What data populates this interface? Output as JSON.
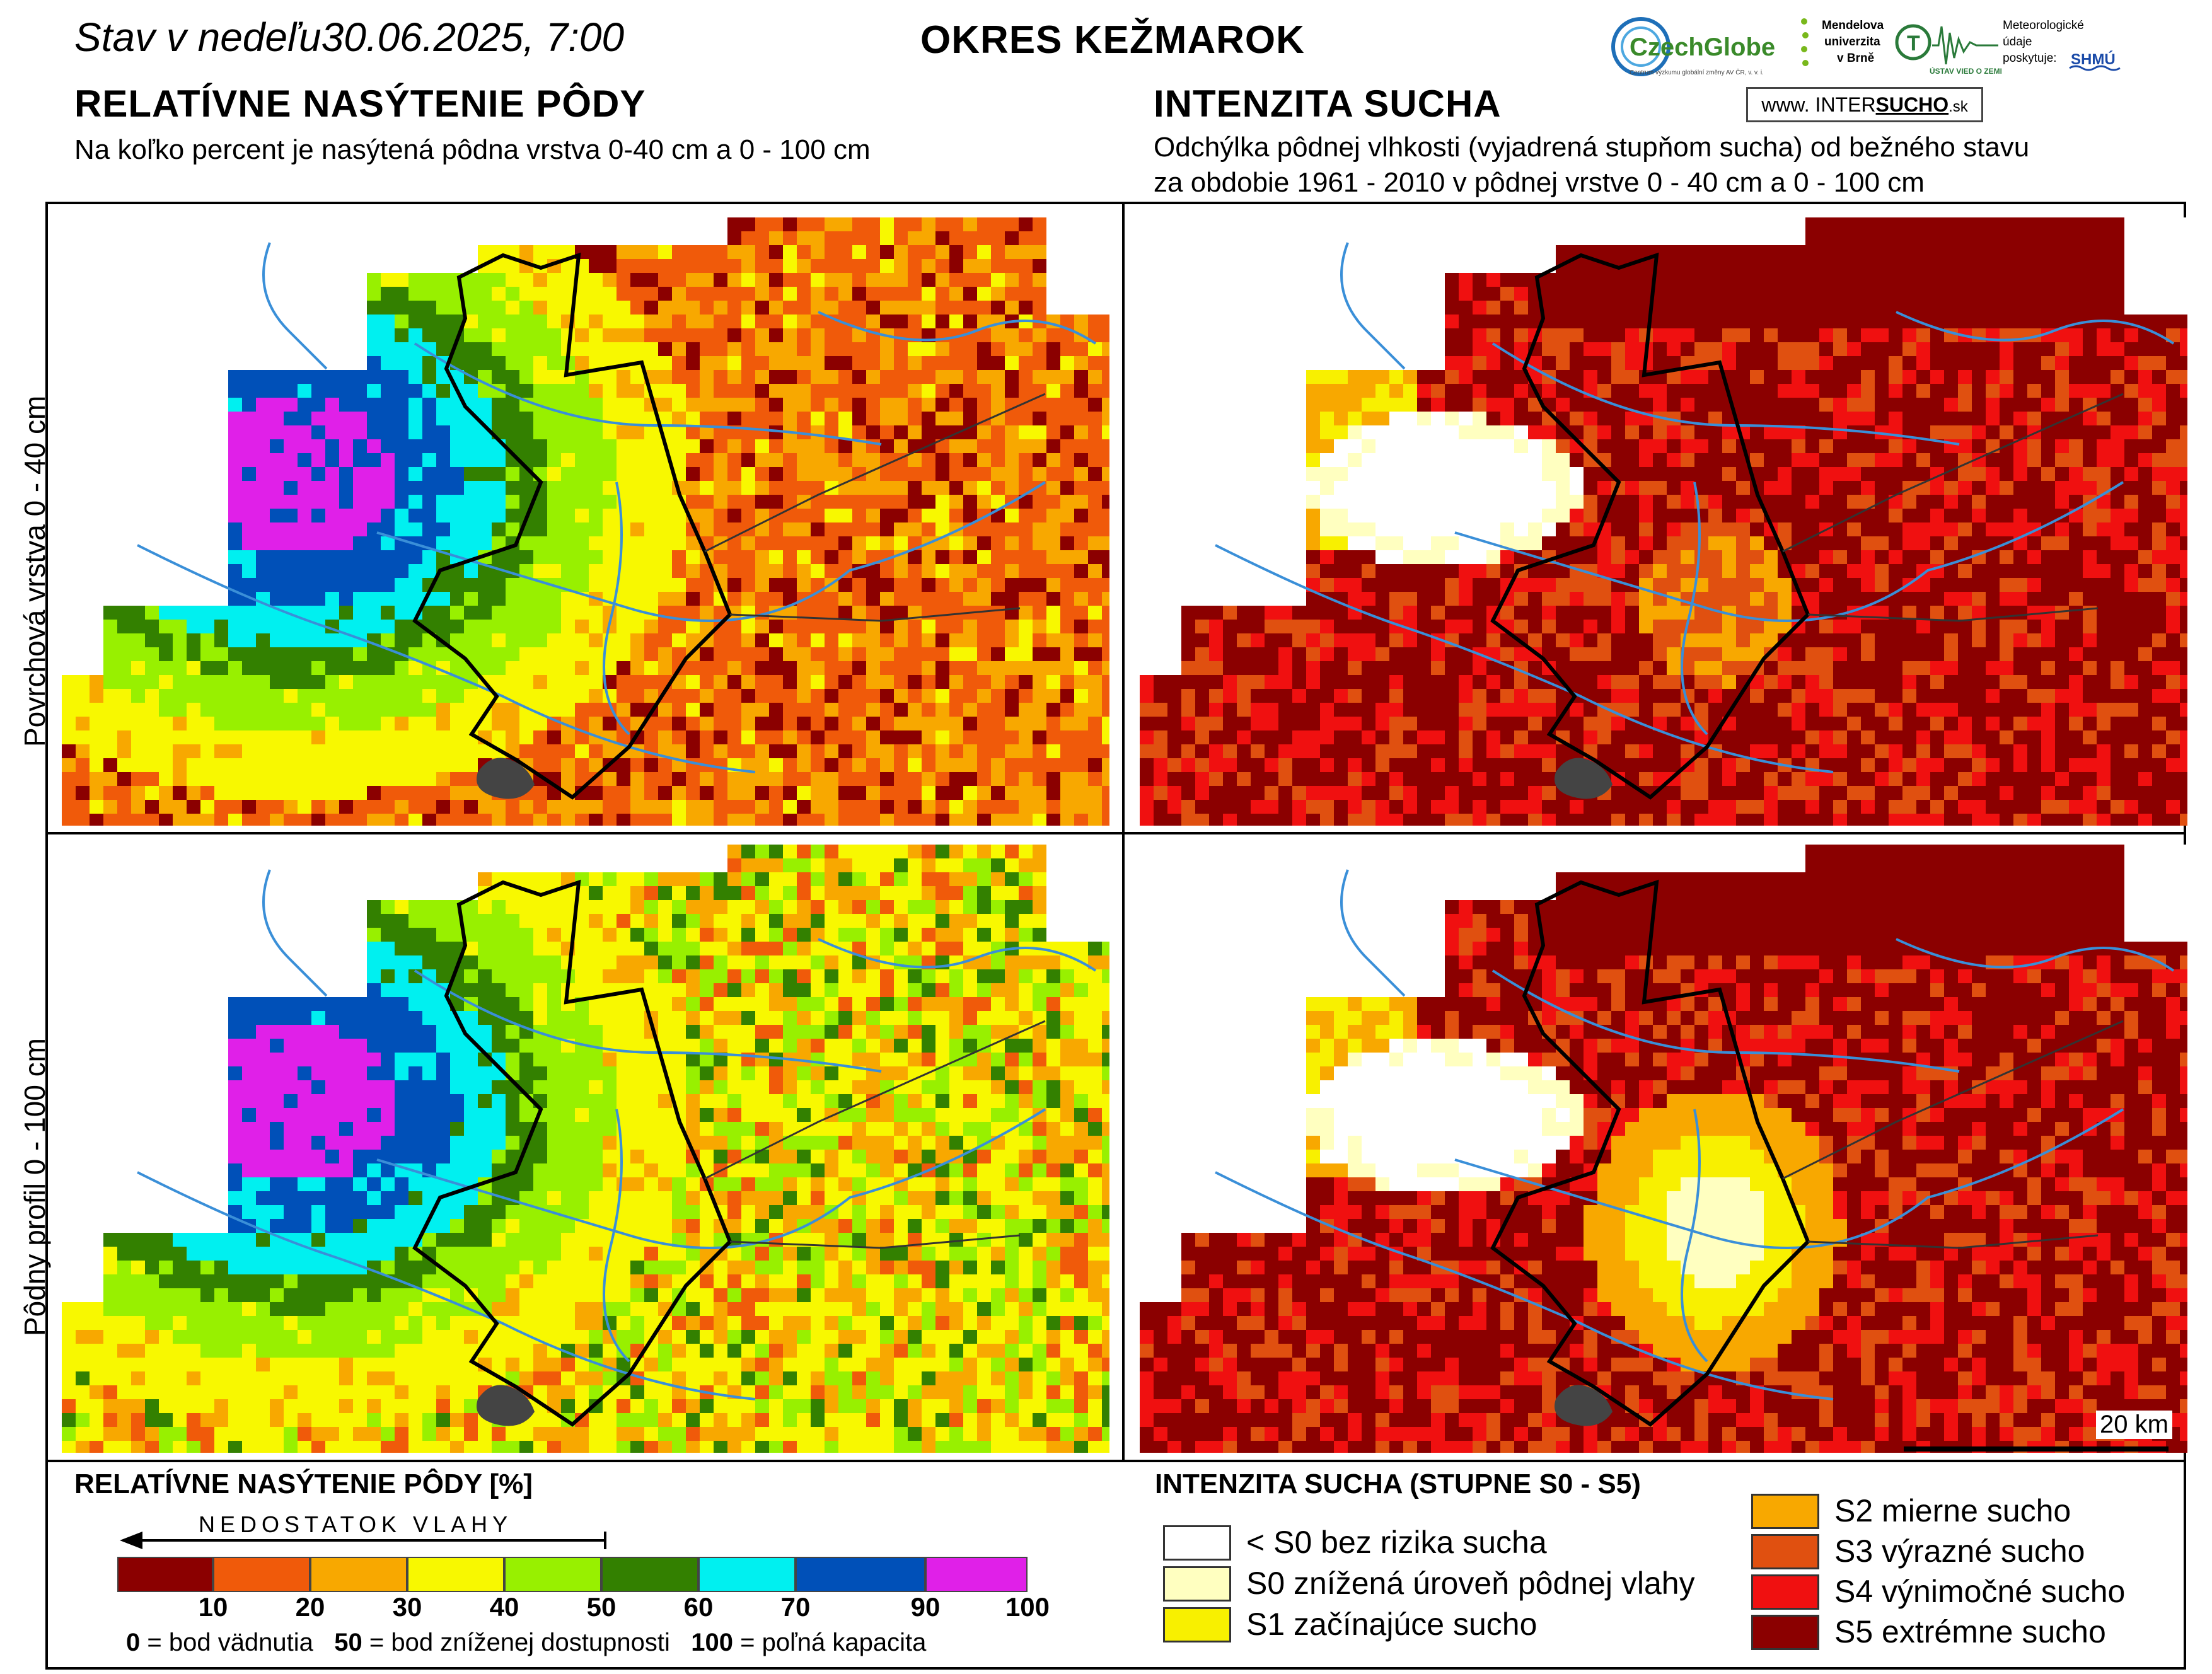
{
  "header": {
    "date_prefix": "Stav v nedeľu",
    "date": "30.06.2025, 7:00",
    "district": "OKRES  KEŽMAROK"
  },
  "logos": {
    "czechglobe": "CzechGlobe",
    "czechglobe_sub": "Centrum výzkumu globální změny AV ČR, v. v. i.",
    "mendel": [
      "Mendelova",
      "univerzita",
      "v Brně"
    ],
    "ustav": "ÚSTAV VIED O ZEMI",
    "meteo": [
      "Meteorologické",
      "údaje",
      "poskytuje:"
    ],
    "shmu": "SHMÚ",
    "intersucho_prefix": "www. INTER",
    "intersucho_mid": "SUCHO",
    "intersucho_suffix": ".sk"
  },
  "left_panel": {
    "title": "RELATÍVNE NASÝTENIE PÔDY",
    "subtitle": "Na koľko percent je nasýtená pôdna vrstva 0-40 cm a 0 - 100 cm"
  },
  "right_panel": {
    "title": "INTENZITA SUCHA",
    "subtitle_1": "Odchýlka pôdnej vlhkosti (vyjadrená stupňom sucha) od bežného stavu",
    "subtitle_2": "za obdobie 1961 - 2010 v pôdnej vrstve 0 - 40 cm a 0 - 100 cm"
  },
  "row_labels": {
    "top": "Povrchová vrstva 0 - 40 cm",
    "bottom": "Pôdny profil 0 - 100 cm"
  },
  "scale_bar": "20 km",
  "legend_left": {
    "title": "RELATÍVNE NASÝTENIE PÔDY [%]",
    "arrow_label": "NEDOSTATOK VLAHY",
    "colors": [
      "#8b0000",
      "#f05a0a",
      "#f8a800",
      "#f8f800",
      "#98f000",
      "#338000",
      "#00f0f0",
      "#0050b8",
      "#e020e8"
    ],
    "ticks": [
      "10",
      "20",
      "30",
      "40",
      "50",
      "60",
      "70",
      "90",
      "100"
    ],
    "note_0": "0",
    "note_0_text": " = bod vädnutia",
    "note_50": "50",
    "note_50_text": " = bod zníženej dostupnosti",
    "note_100": "100",
    "note_100_text": " = poľná kapacita"
  },
  "legend_right": {
    "title": "INTENZITA SUCHA (STUPNE S0 - S5)",
    "items": [
      {
        "color": "#ffffff",
        "label": "< S0 bez rizika sucha"
      },
      {
        "color": "#ffffc0",
        "label": "S0 znížená úroveň pôdnej vlahy"
      },
      {
        "color": "#f8f000",
        "label": "S1 začínajúce sucho"
      },
      {
        "color": "#f8a800",
        "label": "S2 mierne sucho"
      },
      {
        "color": "#e05010",
        "label": "S3 výrazné sucho"
      },
      {
        "color": "#f01010",
        "label": "S4 výnimočné sucho"
      },
      {
        "color": "#8b0000",
        "label": "S5 extrémne sucho"
      }
    ]
  }
}
